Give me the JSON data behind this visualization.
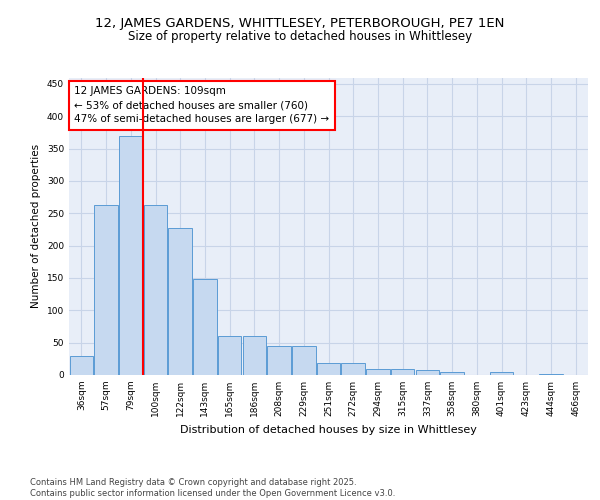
{
  "title1": "12, JAMES GARDENS, WHITTLESEY, PETERBOROUGH, PE7 1EN",
  "title2": "Size of property relative to detached houses in Whittlesey",
  "xlabel": "Distribution of detached houses by size in Whittlesey",
  "ylabel": "Number of detached properties",
  "categories": [
    "36sqm",
    "57sqm",
    "79sqm",
    "100sqm",
    "122sqm",
    "143sqm",
    "165sqm",
    "186sqm",
    "208sqm",
    "229sqm",
    "251sqm",
    "272sqm",
    "294sqm",
    "315sqm",
    "337sqm",
    "358sqm",
    "380sqm",
    "401sqm",
    "423sqm",
    "444sqm",
    "466sqm"
  ],
  "values": [
    30,
    263,
    370,
    263,
    228,
    148,
    60,
    60,
    45,
    45,
    18,
    18,
    10,
    10,
    8,
    5,
    0,
    4,
    0,
    2,
    0
  ],
  "bar_color": "#c6d9f0",
  "bar_edge_color": "#5b9bd5",
  "vline_x_index": 3,
  "vline_color": "red",
  "annotation_text": "12 JAMES GARDENS: 109sqm\n← 53% of detached houses are smaller (760)\n47% of semi-detached houses are larger (677) →",
  "annotation_box_color": "red",
  "ylim": [
    0,
    460
  ],
  "yticks": [
    0,
    50,
    100,
    150,
    200,
    250,
    300,
    350,
    400,
    450
  ],
  "grid_color": "#c8d4e8",
  "background_color": "#e8eef8",
  "footer": "Contains HM Land Registry data © Crown copyright and database right 2025.\nContains public sector information licensed under the Open Government Licence v3.0.",
  "title_fontsize": 9.5,
  "subtitle_fontsize": 8.5,
  "annotation_fontsize": 7.5,
  "ylabel_fontsize": 7.5,
  "xlabel_fontsize": 8,
  "tick_fontsize": 6.5,
  "footer_fontsize": 6
}
